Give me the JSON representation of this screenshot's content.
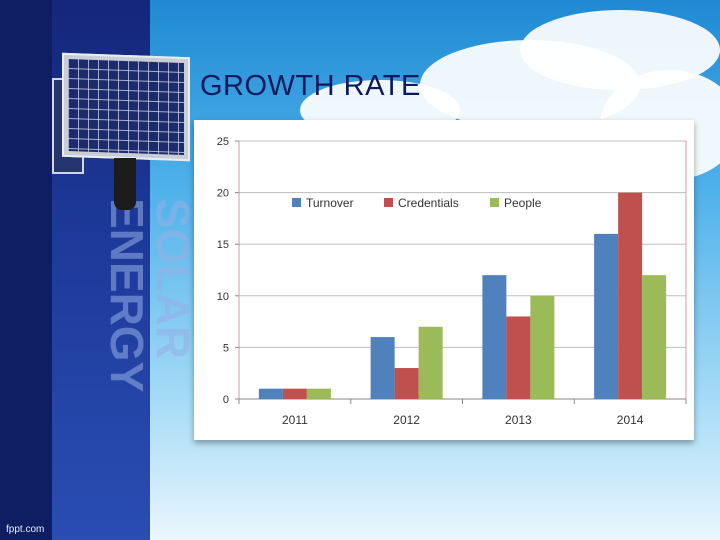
{
  "slide": {
    "title": "GROWTH RATE",
    "vertical_text": "SOLAR ENERGY",
    "footer": "fppt.com"
  },
  "colors": {
    "Turnover": "#4f81bd",
    "Credentials": "#c0504d",
    "People": "#9bbb59",
    "navy": "#14267a"
  },
  "chart_data": {
    "type": "bar",
    "title": "",
    "xlabel": "",
    "ylabel": "",
    "categories": [
      "2011",
      "2012",
      "2013",
      "2014"
    ],
    "series": [
      {
        "name": "Turnover",
        "values": [
          1,
          6,
          12,
          16
        ]
      },
      {
        "name": "Credentials",
        "values": [
          1,
          3,
          8,
          20
        ]
      },
      {
        "name": "People",
        "values": [
          1,
          7,
          10,
          12
        ]
      }
    ],
    "ylim": [
      0,
      25
    ],
    "yticks": [
      0,
      5,
      10,
      15,
      20,
      25
    ],
    "grid": true,
    "legend": "top-center inside plot"
  }
}
